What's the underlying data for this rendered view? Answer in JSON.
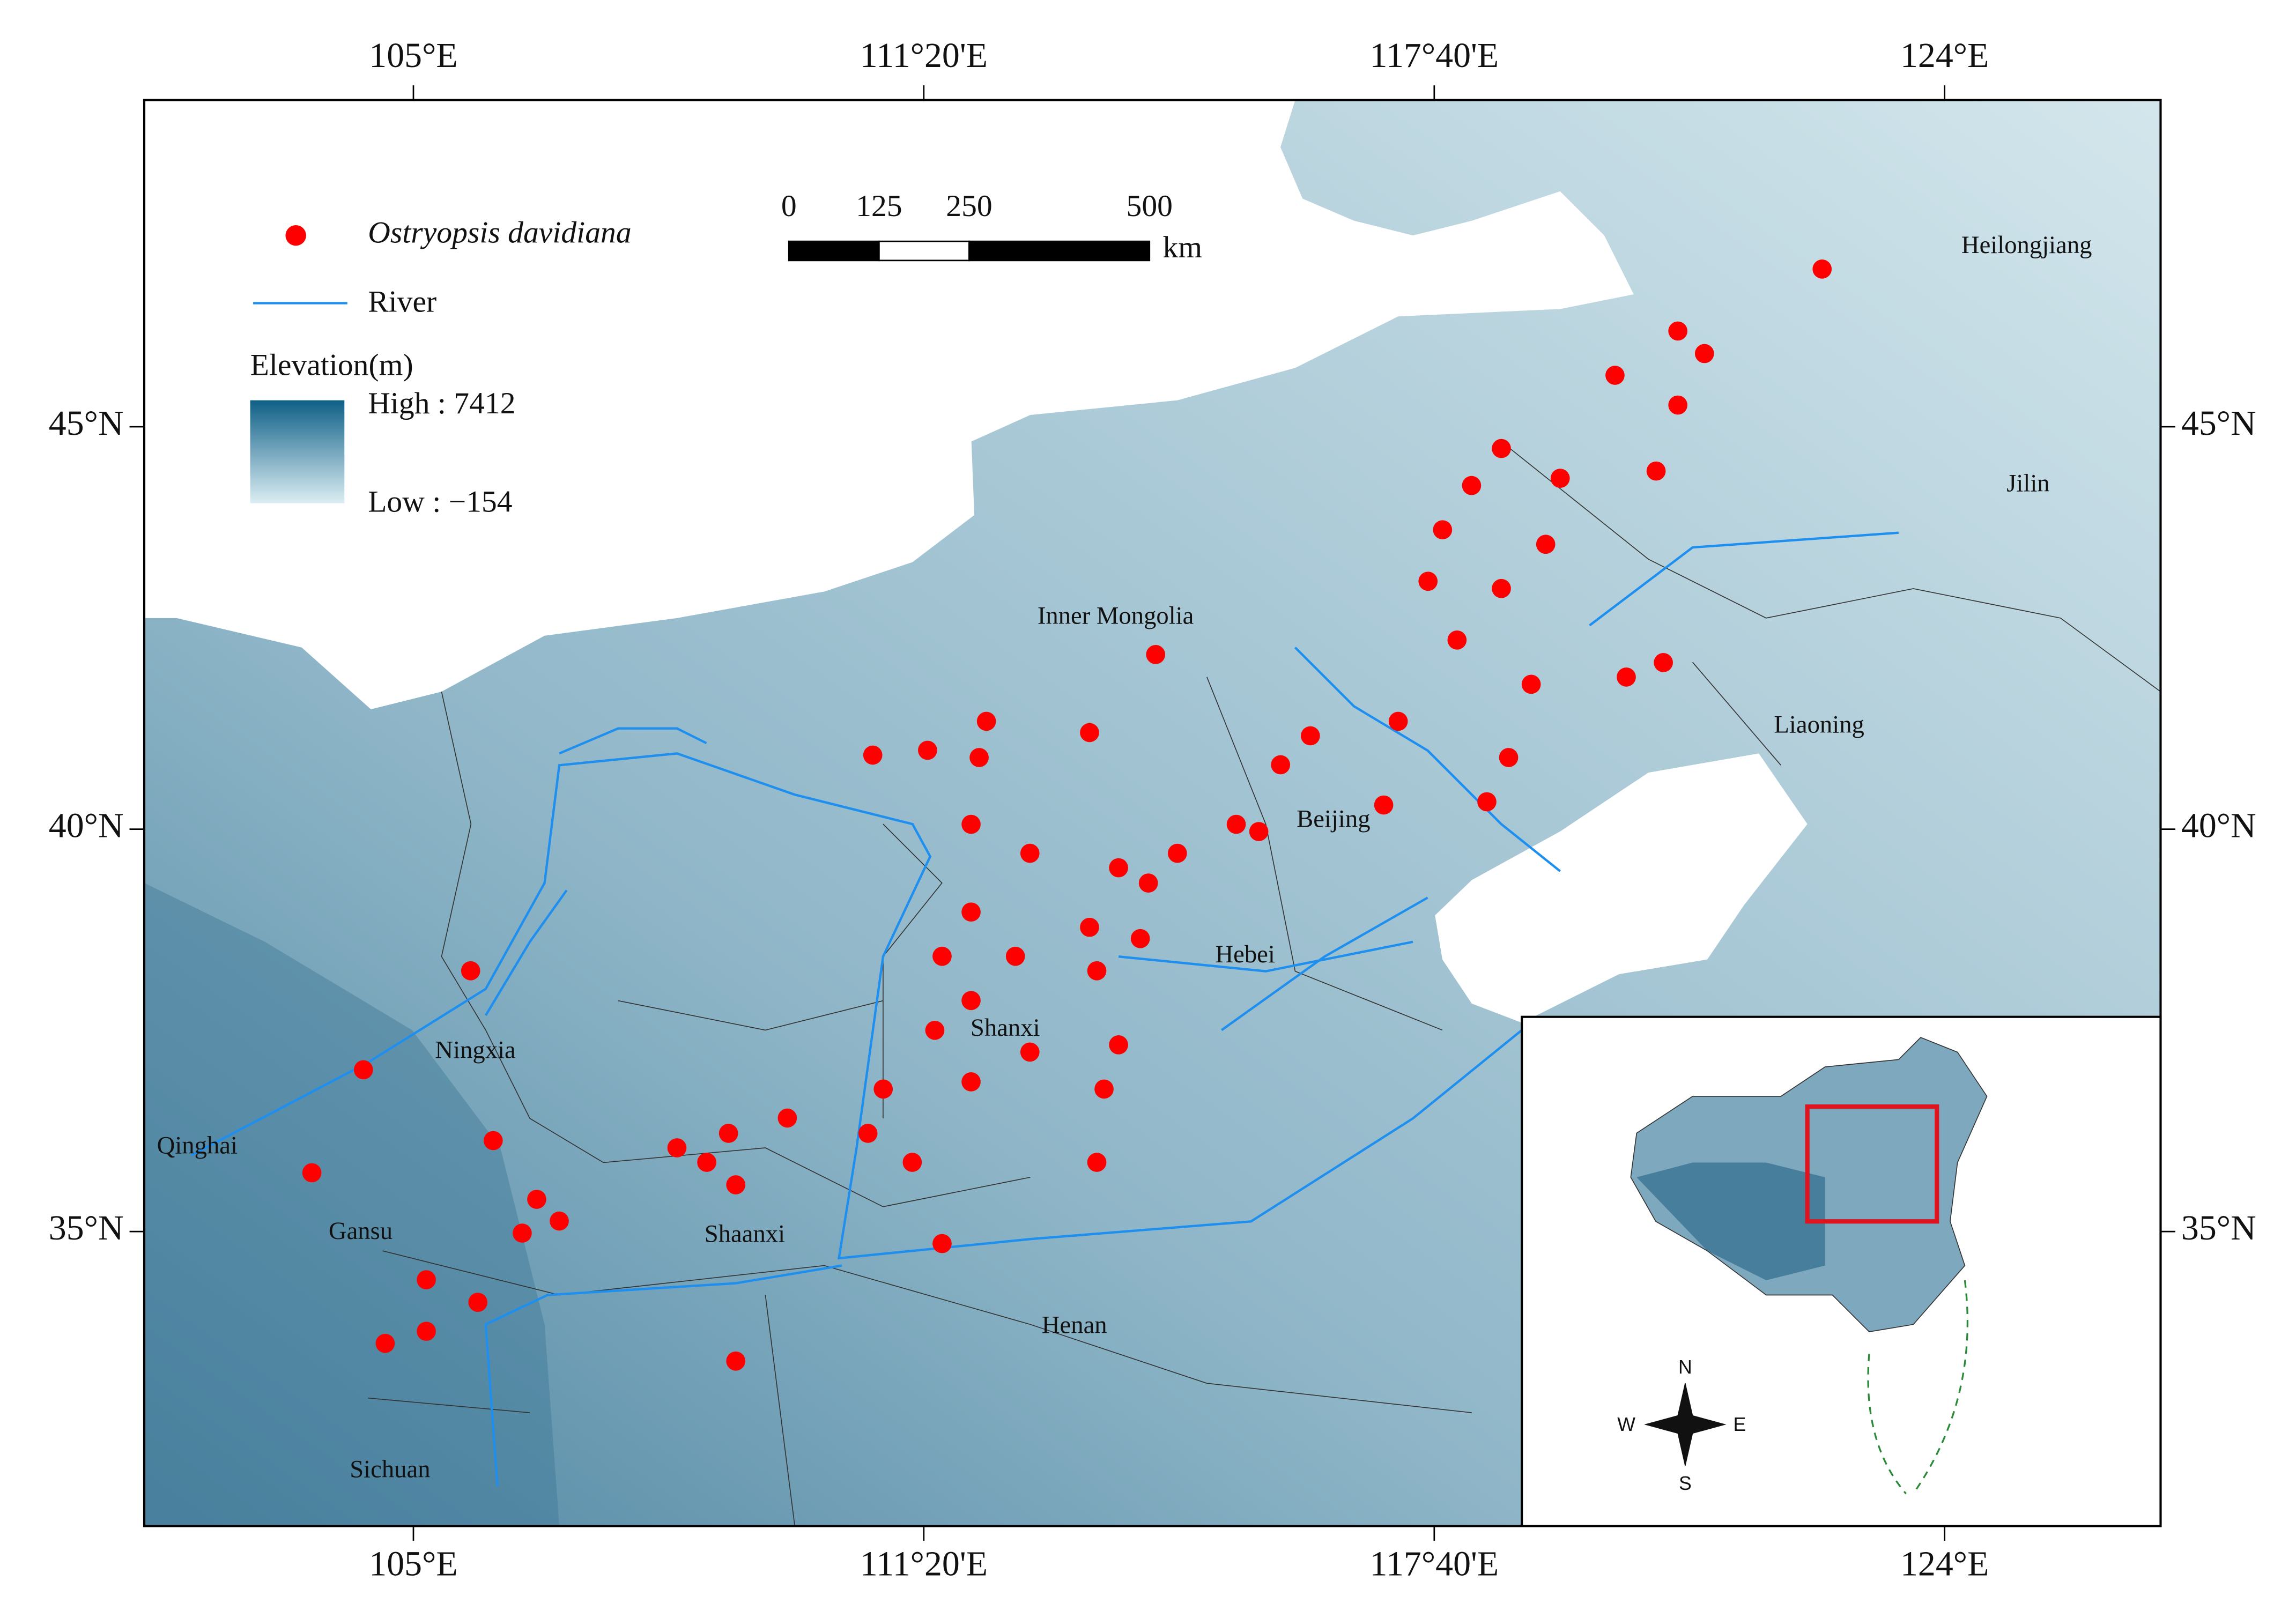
{
  "map": {
    "lonlim": [
      101.66,
      126.68
    ],
    "latlim": [
      31.34,
      49.06
    ],
    "lon_ticks": [
      {
        "value": 105,
        "label": "105°E"
      },
      {
        "value": 111.333,
        "label": "111°20'E"
      },
      {
        "value": 117.667,
        "label": "117°40'E"
      },
      {
        "value": 124,
        "label": "124°E"
      }
    ],
    "lat_ticks": [
      {
        "value": 45,
        "label": "45°N"
      },
      {
        "value": 40,
        "label": "40°N"
      },
      {
        "value": 35,
        "label": "35°N"
      }
    ],
    "points": {
      "name": "Ostryopsis davidiana",
      "color": "#ff0000",
      "lon": [
        122.48,
        120.69,
        121.02,
        119.91,
        120.69,
        118.5,
        119.23,
        120.42,
        117.77,
        117.59,
        118.5,
        117.95,
        120.05,
        120.51,
        117.22,
        118.59,
        116.13,
        115.76,
        115.21,
        114.48,
        114.12,
        113.75,
        113.39,
        112.65,
        111.92,
        112.11,
        112.02,
        111.38,
        110.7,
        111.92,
        111.56,
        112.47,
        111.92,
        111.47,
        112.65,
        113.75,
        113.57,
        111.92,
        110.83,
        110.64,
        111.19,
        113.48,
        111.56,
        109.64,
        108.91,
        108.64,
        109.0,
        108.27,
        109.0,
        106.81,
        106.53,
        105.99,
        105.71,
        104.38,
        103.74,
        105.16,
        105.8,
        104.65,
        105.16,
        113.39,
        114.21,
        118.87,
        118.32,
        117.04,
        115.49,
        114.02,
        113.48,
        106.35,
        118.13,
        119.05
      ],
      "lat": [
        46.96,
        46.19,
        45.91,
        45.64,
        45.27,
        44.73,
        44.36,
        44.45,
        43.72,
        43.08,
        42.99,
        42.35,
        41.89,
        42.07,
        41.34,
        40.89,
        41.16,
        40.8,
        40.06,
        39.7,
        39.33,
        39.52,
        38.78,
        39.7,
        40.06,
        41.34,
        40.89,
        40.98,
        40.92,
        38.97,
        38.42,
        38.42,
        37.87,
        37.5,
        37.23,
        37.32,
        36.77,
        36.86,
        36.77,
        36.22,
        35.86,
        35.86,
        34.85,
        36.41,
        36.22,
        35.86,
        35.58,
        36.04,
        33.39,
        35.13,
        35.4,
        36.13,
        38.24,
        37.01,
        35.73,
        34.4,
        34.12,
        33.61,
        33.76,
        41.2,
        42.17,
        41.8,
        40.34,
        40.3,
        39.97,
        38.64,
        38.24,
        34.98,
        44.27,
        43.54
      ]
    },
    "legend": {
      "species": "Ostryopsis davidiana",
      "river": "River",
      "elevation_title": "Elevation(m)",
      "high": "High : 7412",
      "low": "Low : −154"
    },
    "scale_bar": {
      "ticks": [
        0,
        125,
        250,
        500
      ],
      "unit": "km"
    },
    "provinces": [
      "Heilongjiang",
      "Jilin",
      "Liaoning",
      "Inner Mongolia",
      "Beijing",
      "Hebei",
      "Shanxi",
      "Ningxia",
      "Qinghai",
      "Gansu",
      "Shaanxi",
      "Henan",
      "Sichuan"
    ],
    "compass": {
      "n": "N",
      "s": "S",
      "w": "W",
      "e": "E"
    }
  }
}
